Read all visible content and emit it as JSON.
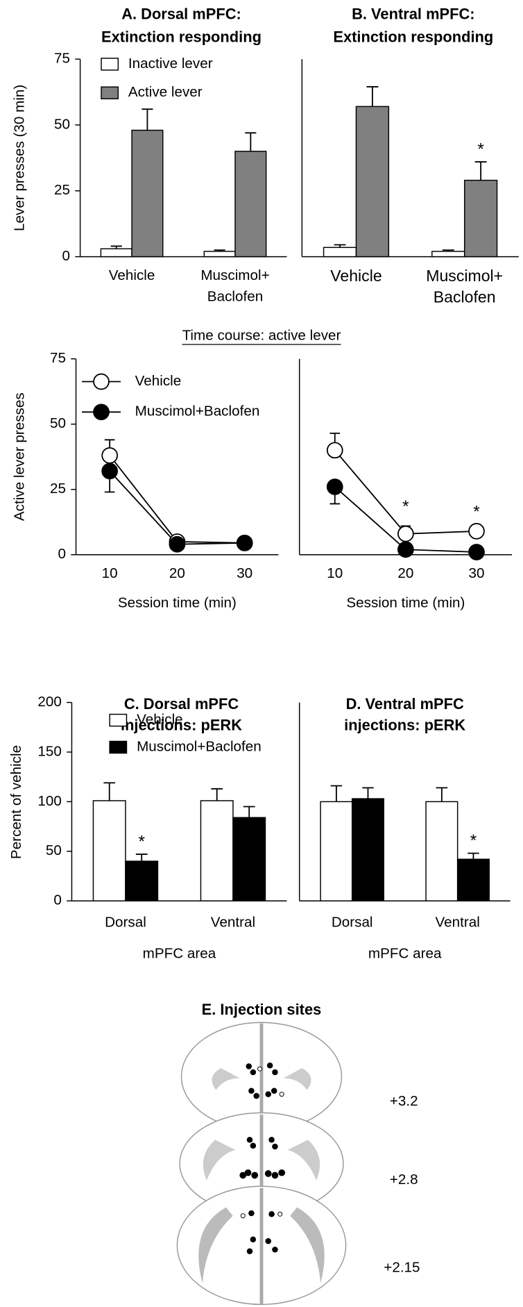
{
  "chart_data": [
    {
      "type": "bar",
      "title": [
        "A. Dorsal mPFC:",
        "Extinction responding"
      ],
      "ylabel": "Lever presses (30 min)",
      "categories": [
        [
          "Vehicle"
        ],
        [
          "Muscimol+",
          "Baclofen"
        ]
      ],
      "series": [
        {
          "name": "Inactive lever",
          "color": "#ffffff",
          "values": [
            3,
            2
          ],
          "errors": [
            1,
            0.5
          ]
        },
        {
          "name": "Active lever",
          "color": "#808080",
          "values": [
            48,
            40
          ],
          "errors": [
            8,
            7
          ]
        }
      ],
      "ylim": [
        0,
        75
      ],
      "yticks": [
        0,
        25,
        50,
        75
      ]
    },
    {
      "type": "bar",
      "title": [
        "B. Ventral mPFC:",
        "Extinction responding"
      ],
      "categories": [
        [
          "Vehicle"
        ],
        [
          "Muscimol+",
          "Baclofen"
        ]
      ],
      "series": [
        {
          "color": "#ffffff",
          "values": [
            3.5,
            2
          ],
          "errors": [
            1,
            0.5
          ]
        },
        {
          "color": "#808080",
          "values": [
            57,
            29
          ],
          "errors": [
            7.5,
            7
          ],
          "annotations": [
            null,
            "*"
          ]
        }
      ],
      "ylim": [
        0,
        75
      ]
    },
    {
      "type": "line",
      "title": "Time course: active lever",
      "ylabel": "Active lever presses",
      "xlabel": "Session time (min)",
      "x": [
        10,
        20,
        30
      ],
      "series": [
        {
          "name": "Vehicle",
          "color": "#ffffff",
          "values": [
            38,
            5,
            4.5
          ],
          "errors": [
            6,
            null,
            null
          ],
          "error_direction": "up"
        },
        {
          "name": "Muscimol+Baclofen",
          "color": "#000000",
          "values": [
            32,
            4,
            4.5
          ],
          "errors": [
            8,
            null,
            null
          ],
          "error_direction": "down"
        }
      ],
      "xlim": [
        5,
        35
      ],
      "xticks": [
        10,
        20,
        30
      ],
      "ylim": [
        0,
        75
      ],
      "yticks": [
        0,
        25,
        50,
        75
      ]
    },
    {
      "type": "line",
      "xlabel": "Session time (min)",
      "x": [
        10,
        20,
        30
      ],
      "series": [
        {
          "color": "#ffffff",
          "values": [
            40,
            8,
            9
          ],
          "errors": [
            6.5,
            3,
            null
          ],
          "error_direction": "up",
          "annotations": [
            null,
            "*",
            "*"
          ]
        },
        {
          "color": "#000000",
          "values": [
            26,
            2,
            1
          ],
          "errors": [
            6.5,
            null,
            null
          ],
          "error_direction": "down"
        }
      ],
      "xlim": [
        5,
        35
      ],
      "xticks": [
        10,
        20,
        30
      ],
      "ylim": [
        0,
        75
      ]
    },
    {
      "type": "bar",
      "title": [
        "C. Dorsal mPFC",
        "injections: pERK"
      ],
      "ylabel": "Percent of vehicle",
      "xlabel": "mPFC area",
      "categories": [
        [
          "Dorsal"
        ],
        [
          "Ventral"
        ]
      ],
      "series": [
        {
          "name": "Vehicle",
          "color": "#ffffff",
          "values": [
            101,
            101
          ],
          "errors": [
            18,
            12
          ]
        },
        {
          "name": "Muscimol+Baclofen",
          "color": "#000000",
          "values": [
            40,
            84
          ],
          "errors": [
            7,
            11
          ],
          "annotations": [
            "*",
            null
          ]
        }
      ],
      "ylim": [
        0,
        200
      ],
      "yticks": [
        0,
        50,
        100,
        150,
        200
      ]
    },
    {
      "type": "bar",
      "title": [
        "D. Ventral mPFC",
        "injections: pERK"
      ],
      "xlabel": "mPFC area",
      "categories": [
        [
          "Dorsal"
        ],
        [
          "Ventral"
        ]
      ],
      "series": [
        {
          "color": "#ffffff",
          "values": [
            100,
            100
          ],
          "errors": [
            16,
            14
          ]
        },
        {
          "color": "#000000",
          "values": [
            103,
            42
          ],
          "errors": [
            11,
            6
          ],
          "annotations": [
            null,
            "*"
          ]
        }
      ],
      "ylim": [
        0,
        200
      ]
    }
  ],
  "panel_e": {
    "title": "E. Injection sites",
    "levels": [
      "+3.2",
      "+2.8",
      "+2.15"
    ]
  }
}
